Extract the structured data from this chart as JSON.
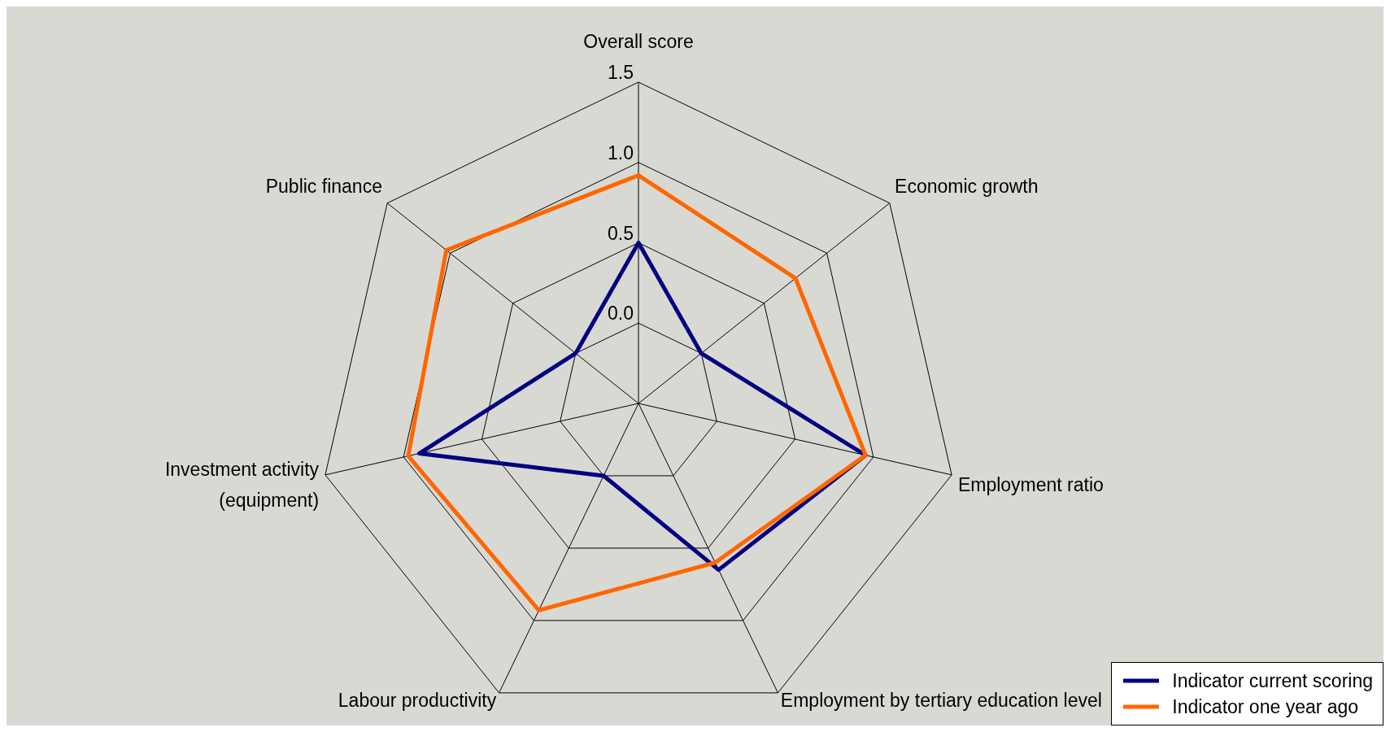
{
  "chart_data": {
    "type": "radar",
    "categories": [
      "Overall score",
      "Economic growth",
      "Employment ratio",
      "Employment by tertiary education level",
      "Labour productivity",
      "Investment activity (equipment)",
      "Public finance"
    ],
    "series": [
      {
        "name": "Indicator current scoring",
        "color": "#000080",
        "values": [
          0.5,
          0.0,
          0.95,
          0.65,
          0.0,
          0.9,
          0.0
        ]
      },
      {
        "name": "Indicator one year ago",
        "color": "#ff6600",
        "values": [
          0.92,
          0.75,
          0.95,
          0.6,
          0.93,
          0.97,
          1.03
        ]
      }
    ],
    "ylim": [
      -0.5,
      1.5
    ],
    "yticks": [
      {
        "value": 0,
        "label": "0.0"
      },
      0.5,
      {
        "value": 1,
        "label": "1.0"
      },
      1.5
    ],
    "legend": "bottom right",
    "grid": true,
    "marker": "none"
  }
}
